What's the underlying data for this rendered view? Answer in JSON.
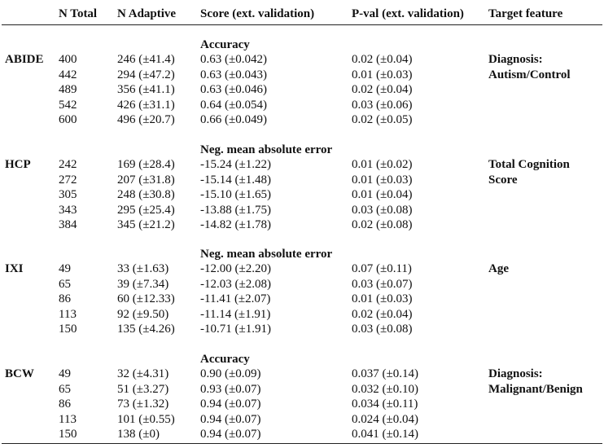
{
  "header": {
    "n_total": "N Total",
    "n_adaptive": "N Adaptive",
    "score": "Score (ext. validation)",
    "pval": "P-val (ext. validation)",
    "target": "Target feature"
  },
  "groups": [
    {
      "dataset": "ABIDE",
      "metric": "Accuracy",
      "target_lines": [
        "Diagnosis:",
        "Autism/Control"
      ],
      "rows": [
        {
          "n_total": "400",
          "n_adaptive": "246 (±41.4)",
          "score": "0.63 (±0.042)",
          "pval": "0.02 (±0.04)"
        },
        {
          "n_total": "442",
          "n_adaptive": "294 (±47.2)",
          "score": "0.63 (±0.043)",
          "pval": "0.01 (±0.03)"
        },
        {
          "n_total": "489",
          "n_adaptive": "356 (±41.1)",
          "score": "0.63 (±0.046)",
          "pval": "0.02 (±0.04)"
        },
        {
          "n_total": "542",
          "n_adaptive": "426 (±31.1)",
          "score": "0.64 (±0.054)",
          "pval": "0.03 (±0.06)"
        },
        {
          "n_total": "600",
          "n_adaptive": "496 (±20.7)",
          "score": "0.66 (±0.049)",
          "pval": "0.02 (±0.05)"
        }
      ]
    },
    {
      "dataset": "HCP",
      "metric": "Neg. mean absolute error",
      "target_lines": [
        "Total Cognition",
        "Score"
      ],
      "rows": [
        {
          "n_total": "242",
          "n_adaptive": "169 (±28.4)",
          "score": "-15.24 (±1.22)",
          "pval": "0.01 (±0.02)"
        },
        {
          "n_total": "272",
          "n_adaptive": "207 (±31.8)",
          "score": "-15.14 (±1.48)",
          "pval": "0.01 (±0.03)"
        },
        {
          "n_total": "305",
          "n_adaptive": "248 (±30.8)",
          "score": "-15.10 (±1.65)",
          "pval": "0.01 (±0.04)"
        },
        {
          "n_total": "343",
          "n_adaptive": "295 (±25.4)",
          "score": "-13.88 (±1.75)",
          "pval": "0.03 (±0.08)"
        },
        {
          "n_total": "384",
          "n_adaptive": "345 (±21.2)",
          "score": "-14.82 (±1.78)",
          "pval": "0.02 (±0.08)"
        }
      ]
    },
    {
      "dataset": "IXI",
      "metric": "Neg. mean absolute error",
      "target_lines": [
        "Age"
      ],
      "rows": [
        {
          "n_total": "49",
          "n_adaptive": "33 (±1.63)",
          "score": "-12.00 (±2.20)",
          "pval": "0.07 (±0.11)"
        },
        {
          "n_total": "65",
          "n_adaptive": "39 (±7.34)",
          "score": "-12.03 (±2.08)",
          "pval": "0.03 (±0.07)"
        },
        {
          "n_total": "86",
          "n_adaptive": "60 (±12.33)",
          "score": "-11.41 (±2.07)",
          "pval": "0.01 (±0.03)"
        },
        {
          "n_total": "113",
          "n_adaptive": "92 (±9.50)",
          "score": "-11.14 (±1.91)",
          "pval": "0.02 (±0.04)"
        },
        {
          "n_total": "150",
          "n_adaptive": "135 (±4.26)",
          "score": "-10.71 (±1.91)",
          "pval": "0.03 (±0.08)"
        }
      ]
    },
    {
      "dataset": "BCW",
      "metric": "Accuracy",
      "target_lines": [
        "Diagnosis:",
        "Malignant/Benign"
      ],
      "rows": [
        {
          "n_total": "49",
          "n_adaptive": "32 (±4.31)",
          "score": "0.90 (±0.09)",
          "pval": "0.037 (±0.14)"
        },
        {
          "n_total": "65",
          "n_adaptive": "51 (±3.27)",
          "score": "0.93 (±0.07)",
          "pval": "0.032 (±0.10)"
        },
        {
          "n_total": "86",
          "n_adaptive": "73 (±1.32)",
          "score": "0.94 (±0.07)",
          "pval": "0.034 (±0.11)"
        },
        {
          "n_total": "113",
          "n_adaptive": "101 (±0.55)",
          "score": "0.94 (±0.07)",
          "pval": "0.024 (±0.04)"
        },
        {
          "n_total": "150",
          "n_adaptive": "138 (±0)",
          "score": "0.94 (±0.07)",
          "pval": "0.041 (±0.14)"
        }
      ]
    }
  ]
}
